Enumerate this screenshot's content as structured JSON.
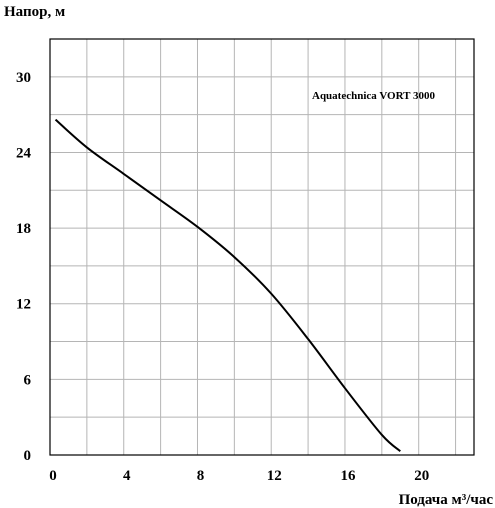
{
  "chart_data": {
    "type": "line",
    "title": "",
    "xlabel": "Подача  м³/час",
    "ylabel": "Напор, м",
    "xlim": [
      0,
      23
    ],
    "ylim": [
      0,
      33
    ],
    "x_ticks": [
      0,
      4,
      8,
      12,
      16,
      20
    ],
    "y_ticks": [
      0,
      6,
      12,
      18,
      24,
      30
    ],
    "x_grid": [
      0,
      2,
      4,
      6,
      8,
      10,
      12,
      14,
      16,
      18,
      20,
      22
    ],
    "y_grid": [
      0,
      3,
      6,
      9,
      12,
      15,
      18,
      21,
      24,
      27,
      30
    ],
    "grid": true,
    "annotation": "Aquatechnica VORT 3000",
    "series": [
      {
        "color": "#000000",
        "x": [
          0.3,
          2,
          4,
          6,
          8,
          10,
          12,
          14,
          16,
          18,
          19
        ],
        "y": [
          26.6,
          24.4,
          22.3,
          20.2,
          18.1,
          15.7,
          12.8,
          9.2,
          5.3,
          1.6,
          0.3
        ]
      }
    ]
  }
}
